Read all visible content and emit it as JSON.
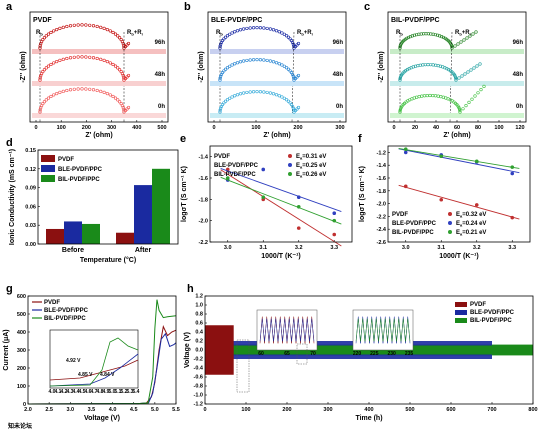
{
  "panels": {
    "a": {
      "letter": "a",
      "title": "PVDF",
      "times": [
        "96h",
        "48h",
        "0h"
      ],
      "rb": "R",
      "rb_sub": "b",
      "rbi": "R",
      "rbi_sub1": "b",
      "rbi_plus": "+R",
      "rbi_sub2": "i",
      "xlabel": "Z' (ohm)",
      "ylabel": "-Z'' (ohm)",
      "xticks": [
        "0",
        "100",
        "200",
        "300",
        "400",
        "500"
      ],
      "xmax": 520,
      "arcs": [
        {
          "start": 40,
          "end": 460,
          "shade": "#c00000"
        },
        {
          "start": 40,
          "end": 450,
          "shade": "#e83030"
        },
        {
          "start": 35,
          "end": 455,
          "shade": "#f06060"
        }
      ],
      "colors": [
        "#c00000",
        "#e02020",
        "#f05050"
      ],
      "bands": [
        "#f5c0c0",
        "#f8d0d0",
        "#fad8d8"
      ]
    },
    "b": {
      "letter": "b",
      "title": "BLE-PVDF/PPC",
      "times": [
        "96h",
        "48h",
        "0h"
      ],
      "rb": "R",
      "rb_sub": "b",
      "rbi": "R",
      "rbi_sub1": "b",
      "rbi_plus": "+R",
      "rbi_sub2": "i",
      "xlabel": "Z' (ohm)",
      "ylabel": "-Z'' (ohm)",
      "xticks": [
        "0",
        "100",
        "200",
        "300"
      ],
      "xmax": 320,
      "colors": [
        "#1020a0",
        "#2080d0",
        "#30a8d8"
      ],
      "bands": [
        "#c8d0f0",
        "#c8e4f8",
        "#c8ecf4"
      ]
    },
    "c": {
      "letter": "c",
      "title": "BIL-PVDF/PPC",
      "times": [
        "96h",
        "48h",
        "0h"
      ],
      "rb": "R",
      "rb_sub": "b",
      "rbi": "R",
      "rbi_sub1": "b",
      "rbi_plus": "+R",
      "rbi_sub2": "i",
      "xlabel": "Z' (ohm)",
      "ylabel": "-Z'' (ohm)",
      "xticks": [
        "0",
        "20",
        "40",
        "60",
        "80",
        "100",
        "120"
      ],
      "xmax": 120,
      "colors": [
        "#208020",
        "#20a0a0",
        "#40c040"
      ],
      "bands": [
        "#c8ecc8",
        "#c8ecec",
        "#d0f4d0"
      ]
    }
  },
  "chart_data": [
    {
      "panel": "d",
      "type": "bar",
      "title": "",
      "categories": [
        "Before",
        "After"
      ],
      "series": [
        {
          "name": "PVDF",
          "values": [
            0.024,
            0.018
          ],
          "color": "#8b1010"
        },
        {
          "name": "BLE-PVDF/PPC",
          "values": [
            0.036,
            0.094
          ],
          "color": "#1a2aa0"
        },
        {
          "name": "BIL-PVDF/PPC",
          "values": [
            0.032,
            0.12
          ],
          "color": "#1a8a1a"
        }
      ],
      "xlabel": "Temperature (°C)",
      "ylabel": "Ionic Conductivity (mS cm⁻¹)",
      "ylim": [
        0,
        0.15
      ],
      "yticks": [
        "0.00",
        "0.03",
        "0.06",
        "0.09",
        "0.12",
        "0.15"
      ]
    },
    {
      "panel": "e",
      "type": "line",
      "x": [
        3.0,
        3.1,
        3.2,
        3.3
      ],
      "series": [
        {
          "name": "PVDF",
          "ea": "=0.31 eV",
          "values": [
            -1.52,
            -1.8,
            -2.07,
            -2.13
          ],
          "color": "#c03030"
        },
        {
          "name": "BLE-PVDF/PPC",
          "ea": "=0.25 eV",
          "values": [
            -1.62,
            -1.52,
            -1.78,
            -1.93
          ],
          "color": "#3040c0"
        },
        {
          "name": "BIL-PVDF/PPC",
          "ea": "=0.26 eV",
          "values": [
            -1.6,
            -1.78,
            -1.87,
            -2.0
          ],
          "color": "#30a030"
        }
      ],
      "xlabel": "1000/T (K⁻¹)",
      "ylabel": "logσT (S cm⁻¹ K)",
      "xlim": [
        2.95,
        3.35
      ],
      "ylim": [
        -2.2,
        -1.3
      ],
      "xticks": [
        "3.0",
        "3.1",
        "3.2",
        "3.3"
      ],
      "yticks": [
        "-1.4",
        "-1.6",
        "-1.8",
        "-2.0",
        "-2.2"
      ]
    },
    {
      "panel": "f",
      "type": "line",
      "x": [
        3.0,
        3.1,
        3.2,
        3.3
      ],
      "series": [
        {
          "name": "PVDF",
          "ea": "=0.32 eV",
          "values": [
            -1.73,
            -1.94,
            -2.02,
            -2.22
          ],
          "color": "#c03030"
        },
        {
          "name": "BLE-PVDF/PPC",
          "ea": "=0.24 eV",
          "values": [
            -1.2,
            -1.24,
            -1.35,
            -1.53
          ],
          "color": "#3040c0"
        },
        {
          "name": "BIL-PVDF/PPC",
          "ea": "=0.21 eV",
          "values": [
            -1.15,
            -1.26,
            -1.34,
            -1.43
          ],
          "color": "#30a030"
        }
      ],
      "xlabel": "1000/T (K⁻¹)",
      "ylabel": "logσT (S cm⁻¹ K)",
      "xlim": [
        2.95,
        3.35
      ],
      "ylim": [
        -2.6,
        -1.1
      ],
      "xticks": [
        "3.0",
        "3.1",
        "3.2",
        "3.3"
      ],
      "yticks": [
        "-1.2",
        "-1.4",
        "-1.6",
        "-1.8",
        "-2.0",
        "-2.2",
        "-2.4",
        "-2.6"
      ]
    },
    {
      "panel": "g",
      "type": "line",
      "title": "",
      "series": [
        {
          "name": "PVDF",
          "color": "#8b1010"
        },
        {
          "name": "BLE-PVDF/PPC",
          "color": "#1a2aa0"
        },
        {
          "name": "BIL-PVDF/PPC",
          "color": "#1a8a1a"
        }
      ],
      "xlabel": "Voltage (V)",
      "ylabel": "Current (μA)",
      "xlim": [
        2.0,
        5.5
      ],
      "ylim": [
        0,
        600
      ],
      "xticks": [
        "2.0",
        "2.5",
        "3.0",
        "3.5",
        "4.0",
        "4.5",
        "5.0",
        "5.5"
      ],
      "yticks": [
        "0",
        "100",
        "200",
        "300",
        "400",
        "500",
        "600"
      ],
      "annotations": [
        "4.92 V",
        "4.85 V",
        "4.84 V"
      ],
      "inset_xticks": [
        "4.0",
        "4.1",
        "4.2",
        "4.3",
        "4.4",
        "4.5",
        "4.6",
        "4.7",
        "4.8",
        "4.9",
        "5.0",
        "5.1",
        "5.2",
        "5.3",
        "5.4"
      ]
    },
    {
      "panel": "h",
      "type": "line",
      "series": [
        {
          "name": "PVDF",
          "color": "#8b1010"
        },
        {
          "name": "BLE-PVDF/PPC",
          "color": "#1a2aa0"
        },
        {
          "name": "BIL-PVDF/PPC",
          "color": "#1a8a1a"
        }
      ],
      "xlabel": "Time (h)",
      "ylabel": "Voltage (V)",
      "xlim": [
        0,
        800
      ],
      "ylim": [
        -1.2,
        1.2
      ],
      "xticks": [
        "0",
        "100",
        "200",
        "300",
        "400",
        "500",
        "600",
        "700",
        "800"
      ],
      "yticks": [
        "1.2",
        "1.0",
        "0.8",
        "0.6",
        "0.4",
        "0.2",
        "0.0",
        "-0.2",
        "-0.4",
        "-0.6",
        "-0.8",
        "-1.0",
        "-1.2"
      ],
      "inset1_xticks": [
        "60",
        "65",
        "70"
      ],
      "inset2_xticks": [
        "220",
        "225",
        "230",
        "235"
      ]
    }
  ],
  "watermark": "知未论坛"
}
